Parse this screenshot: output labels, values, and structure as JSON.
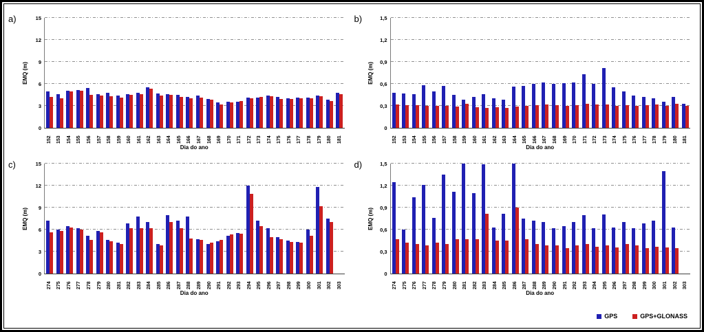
{
  "legend": {
    "items": [
      {
        "label": "GPS",
        "color": "#2020b2"
      },
      {
        "label": "GPS+GLONASS",
        "color": "#cc2020"
      }
    ]
  },
  "chart_data": [
    {
      "type": "bar",
      "panel": "a)",
      "ylabel": "EMQ (m)",
      "xlabel": "Dia do ano",
      "ylim": [
        0,
        15
      ],
      "yticks": [
        "0",
        "3",
        "6",
        "9",
        "12",
        "15"
      ],
      "grid": "dash-dot horizontal",
      "categories": [
        "152",
        "153",
        "154",
        "155",
        "156",
        "157",
        "158",
        "159",
        "160",
        "161",
        "162",
        "163",
        "164",
        "165",
        "166",
        "167",
        "168",
        "169",
        "170",
        "171",
        "172",
        "173",
        "174",
        "175",
        "176",
        "177",
        "178",
        "179",
        "180",
        "181"
      ],
      "series": [
        {
          "name": "GPS",
          "values": [
            5.0,
            4.6,
            5.1,
            5.2,
            5.4,
            4.6,
            4.8,
            4.4,
            4.6,
            4.8,
            5.5,
            4.7,
            4.6,
            4.5,
            4.2,
            4.4,
            3.9,
            3.5,
            3.6,
            3.6,
            4.1,
            4.1,
            4.4,
            4.2,
            4.0,
            4.1,
            4.1,
            4.4,
            3.8,
            4.8
          ]
        },
        {
          "name": "GPS+GLONASS",
          "values": [
            4.2,
            4.0,
            5.0,
            5.1,
            4.5,
            4.4,
            4.3,
            4.1,
            4.5,
            4.6,
            5.3,
            4.4,
            4.5,
            4.2,
            4.0,
            4.1,
            3.8,
            3.2,
            3.5,
            3.7,
            4.0,
            4.2,
            4.3,
            3.9,
            3.9,
            4.0,
            4.0,
            4.3,
            3.7,
            4.6
          ]
        }
      ]
    },
    {
      "type": "bar",
      "panel": "b)",
      "ylabel": "EMQ (m)",
      "xlabel": "Dia do ano",
      "ylim": [
        0,
        1.5
      ],
      "yticks": [
        "0",
        "0,3",
        "0,6",
        "0,9",
        "1,2",
        "1,5"
      ],
      "grid": "dash-dot horizontal",
      "categories": [
        "152",
        "153",
        "154",
        "155",
        "156",
        "157",
        "158",
        "159",
        "160",
        "161",
        "162",
        "163",
        "164",
        "165",
        "166",
        "167",
        "168",
        "169",
        "170",
        "171",
        "172",
        "173",
        "174",
        "175",
        "176",
        "177",
        "178",
        "179",
        "180",
        "181"
      ],
      "series": [
        {
          "name": "GPS",
          "values": [
            0.48,
            0.47,
            0.46,
            0.58,
            0.5,
            0.57,
            0.45,
            0.38,
            0.42,
            0.46,
            0.4,
            0.38,
            0.56,
            0.57,
            0.6,
            0.62,
            0.6,
            0.61,
            0.62,
            0.73,
            0.6,
            0.82,
            0.55,
            0.5,
            0.44,
            0.42,
            0.4,
            0.36,
            0.42,
            0.33
          ]
        },
        {
          "name": "GPS+GLONASS",
          "values": [
            0.32,
            0.31,
            0.31,
            0.3,
            0.3,
            0.3,
            0.29,
            0.33,
            0.28,
            0.27,
            0.28,
            0.27,
            0.29,
            0.3,
            0.31,
            0.32,
            0.31,
            0.3,
            0.31,
            0.33,
            0.32,
            0.32,
            0.3,
            0.31,
            0.3,
            0.31,
            0.32,
            0.3,
            0.33,
            0.3
          ]
        }
      ]
    },
    {
      "type": "bar",
      "panel": "c)",
      "ylabel": "EMQ (m)",
      "xlabel": "Dia do ano",
      "ylim": [
        0,
        15
      ],
      "yticks": [
        "0",
        "3",
        "6",
        "9",
        "12",
        "15"
      ],
      "grid": "dash-dot horizontal",
      "categories": [
        "274",
        "275",
        "276",
        "277",
        "278",
        "279",
        "280",
        "281",
        "282",
        "283",
        "284",
        "285",
        "286",
        "287",
        "288",
        "289",
        "290",
        "291",
        "292",
        "293",
        "294",
        "295",
        "296",
        "297",
        "298",
        "299",
        "300",
        "301",
        "302",
        "303"
      ],
      "series": [
        {
          "name": "GPS",
          "values": [
            7.2,
            6.0,
            6.5,
            6.2,
            5.2,
            5.8,
            4.6,
            4.2,
            6.8,
            7.8,
            7.0,
            4.0,
            8.0,
            7.2,
            7.8,
            4.7,
            4.0,
            4.4,
            5.2,
            5.5,
            12.0,
            7.2,
            6.2,
            5.0,
            4.5,
            4.3,
            6.0,
            11.8,
            7.5,
            0
          ]
        },
        {
          "name": "GPS+GLONASS",
          "values": [
            5.6,
            5.8,
            6.3,
            6.0,
            4.6,
            5.6,
            4.4,
            4.0,
            6.2,
            6.2,
            6.2,
            3.8,
            7.0,
            6.2,
            4.8,
            4.6,
            4.2,
            4.6,
            5.3,
            5.4,
            10.9,
            6.5,
            5.0,
            4.7,
            4.3,
            4.2,
            5.2,
            9.2,
            7.0,
            0
          ]
        }
      ]
    },
    {
      "type": "bar",
      "panel": "d)",
      "ylabel": "EMQ (m)",
      "xlabel": "Dia do ano",
      "ylim": [
        0,
        1.5
      ],
      "yticks": [
        "0",
        "0,3",
        "0,6",
        "0,9",
        "1,2",
        "1,5"
      ],
      "grid": "dash-dot horizontal",
      "categories": [
        "274",
        "275",
        "276",
        "277",
        "278",
        "279",
        "280",
        "281",
        "282",
        "283",
        "284",
        "285",
        "286",
        "287",
        "288",
        "289",
        "290",
        "291",
        "292",
        "293",
        "294",
        "295",
        "296",
        "297",
        "298",
        "299",
        "300",
        "301",
        "302",
        "303"
      ],
      "series": [
        {
          "name": "GPS",
          "values": [
            1.25,
            0.6,
            1.04,
            1.21,
            0.76,
            1.35,
            1.12,
            1.5,
            1.1,
            1.49,
            0.63,
            0.82,
            1.5,
            0.75,
            0.72,
            0.7,
            0.62,
            0.65,
            0.7,
            0.8,
            0.62,
            0.81,
            0.63,
            0.7,
            0.62,
            0.68,
            0.72,
            1.4,
            0.63,
            0
          ]
        },
        {
          "name": "GPS+GLONASS",
          "values": [
            0.47,
            0.42,
            0.4,
            0.38,
            0.42,
            0.4,
            0.47,
            0.47,
            0.47,
            0.82,
            0.45,
            0.45,
            0.9,
            0.47,
            0.4,
            0.38,
            0.38,
            0.35,
            0.38,
            0.4,
            0.37,
            0.38,
            0.36,
            0.4,
            0.38,
            0.35,
            0.37,
            0.36,
            0.35,
            0
          ]
        }
      ]
    }
  ]
}
